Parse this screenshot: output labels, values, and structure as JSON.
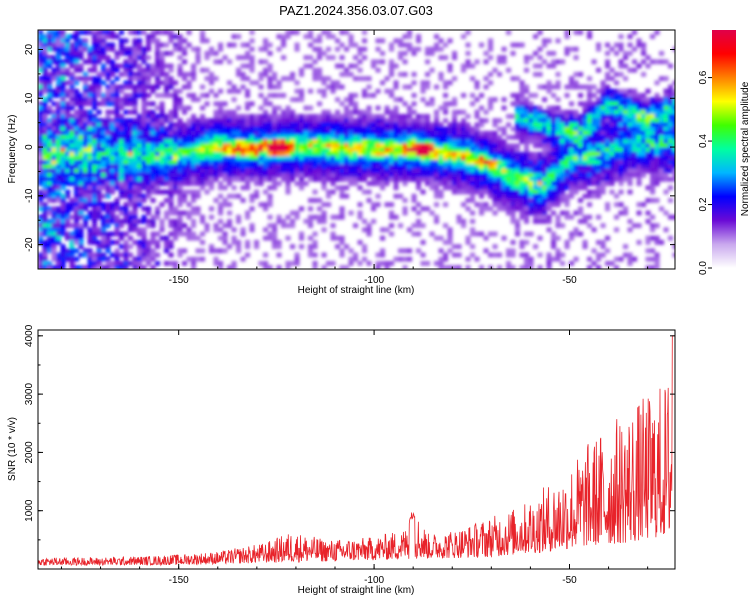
{
  "figure": {
    "title": "PAZ1.2024.356.03.07.G03"
  },
  "chart_data": [
    {
      "type": "heatmap",
      "xlabel": "Height of straight line (km)",
      "ylabel": "Frequency (Hz)",
      "xlim": [
        -186,
        -23
      ],
      "ylim": [
        -25,
        24
      ],
      "x_ticks": [
        -150,
        -100,
        -50
      ],
      "y_ticks": [
        -20,
        -10,
        0,
        10,
        20
      ],
      "colorbar": {
        "label": "Normalized spectral amplitude",
        "range": [
          0.0,
          0.75
        ],
        "ticks": [
          0.0,
          0.2,
          0.4,
          0.6
        ],
        "colors": [
          "#ffffff",
          "#c9a8ee",
          "#6a0ad6",
          "#0000ff",
          "#00b6ff",
          "#00ffa0",
          "#40ff00",
          "#ffff00",
          "#ff8000",
          "#ff0000",
          "#e0004a"
        ]
      },
      "ridge": {
        "points": [
          [
            -180,
            -1.5
          ],
          [
            -165,
            -2
          ],
          [
            -150,
            -1.5
          ],
          [
            -140,
            0
          ],
          [
            -130,
            -0.3
          ],
          [
            -122,
            0
          ],
          [
            -110,
            0
          ],
          [
            -100,
            -0.5
          ],
          [
            -90,
            -0.5
          ],
          [
            -80,
            -1.5
          ],
          [
            -72,
            -3
          ],
          [
            -65,
            -6
          ],
          [
            -57,
            -8
          ],
          [
            -50,
            -2.5
          ],
          [
            -42,
            -1.5
          ],
          [
            -35,
            0.5
          ],
          [
            -25,
            1
          ]
        ],
        "upper_branch": [
          [
            -62,
            6
          ],
          [
            -55,
            4
          ],
          [
            -47,
            3
          ],
          [
            -40,
            9
          ],
          [
            -30,
            6
          ],
          [
            -23,
            8
          ]
        ],
        "peaks": [
          [
            -125,
            0,
            0.72
          ],
          [
            -88,
            -0.5,
            0.7
          ],
          [
            -133,
            -0.5,
            0.55
          ],
          [
            -72,
            -3,
            0.5
          ]
        ]
      }
    },
    {
      "type": "line",
      "xlabel": "Height of straight line (km)",
      "ylabel": "SNR (10 * v/v)",
      "xlim": [
        -186,
        -23
      ],
      "ylim": [
        0,
        4100
      ],
      "x_ticks": [
        -150,
        -100,
        -50
      ],
      "y_ticks": [
        1000,
        2000,
        3000,
        4000
      ],
      "series": [
        {
          "color": "#e8232a",
          "envelope": [
            [
              -186,
              200
            ],
            [
              -170,
              200
            ],
            [
              -155,
              230
            ],
            [
              -140,
              300
            ],
            [
              -128,
              450
            ],
            [
              -121,
              650
            ],
            [
              -112,
              500
            ],
            [
              -100,
              550
            ],
            [
              -92,
              700
            ],
            [
              -90,
              1050
            ],
            [
              -86,
              600
            ],
            [
              -78,
              700
            ],
            [
              -70,
              900
            ],
            [
              -62,
              1100
            ],
            [
              -55,
              1500
            ],
            [
              -50,
              1800
            ],
            [
              -45,
              2200
            ],
            [
              -40,
              2500
            ],
            [
              -35,
              2800
            ],
            [
              -30,
              3000
            ],
            [
              -25,
              3300
            ],
            [
              -23,
              4000
            ]
          ],
          "floor": [
            [
              -186,
              60
            ],
            [
              -150,
              70
            ],
            [
              -110,
              130
            ],
            [
              -90,
              170
            ],
            [
              -70,
              200
            ],
            [
              -55,
              300
            ],
            [
              -45,
              400
            ],
            [
              -35,
              450
            ],
            [
              -23,
              600
            ]
          ]
        }
      ]
    }
  ]
}
